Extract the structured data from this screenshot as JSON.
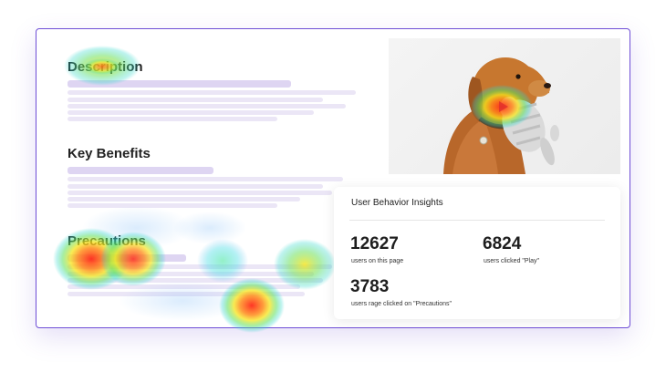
{
  "content": {
    "heading_description": "Description",
    "heading_benefits": "Key Benefits",
    "heading_precautions": "Precautions"
  },
  "hero": {
    "image": "dog-holding-plush-toy"
  },
  "insights": {
    "title": "User Behavior Insights",
    "stats": [
      {
        "value": "12627",
        "label": "users on this page"
      },
      {
        "value": "6824",
        "label": "users clicked \"Play\""
      },
      {
        "value": "3783",
        "label": "users rage clicked on \"Precautions\""
      }
    ]
  },
  "colors": {
    "frame_border": "#6f4fd6",
    "placeholder_bar": "#ebe6f6",
    "heat_hot": "#ff2a1a",
    "heat_warm": "#f7e51a",
    "heat_cool": "#28d7c9"
  },
  "icons": [
    "play-icon"
  ]
}
